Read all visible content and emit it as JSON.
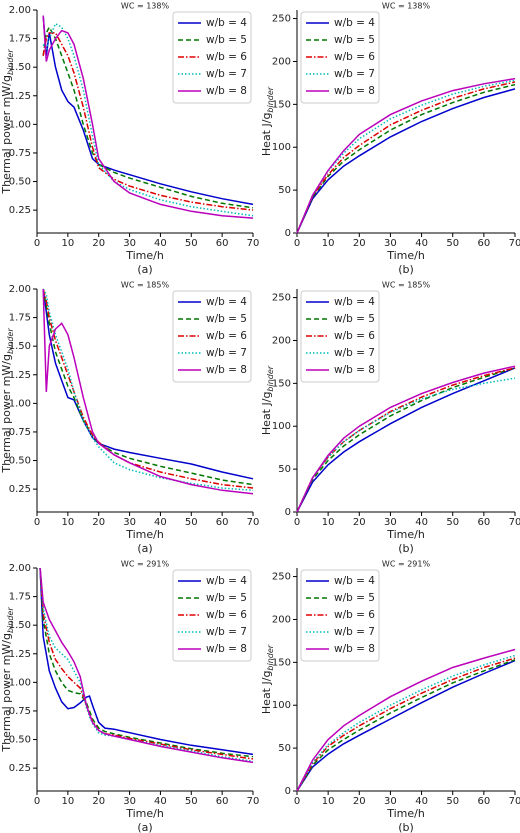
{
  "chart_data": [
    {
      "type": "line",
      "title": "WC = 138%",
      "caption": "(a)",
      "xlabel": "Time/h",
      "ylabel": "Thermal power mW/g",
      "ylabel_subscript": "binder",
      "legend_loc": "upper right",
      "xlim": [
        0,
        70
      ],
      "xticks": [
        0,
        10,
        20,
        30,
        40,
        50,
        60,
        70
      ],
      "ylim": [
        0.05,
        2.0
      ],
      "yticks": [
        0.25,
        {
          "value": 0.5,
          "label": "0.50"
        },
        0.75,
        {
          "value": 1.0,
          "label": "1.00"
        },
        1.25,
        {
          "value": 1.5,
          "label": "1.50"
        },
        1.75,
        {
          "value": 2.0,
          "label": "2.00"
        }
      ],
      "x": [
        2,
        3,
        4,
        6,
        8,
        10,
        12,
        15,
        18,
        20,
        25,
        30,
        40,
        50,
        60,
        70
      ],
      "series": [
        {
          "name": "w/b = 4",
          "color": "#0000cc",
          "linestyle": "solid",
          "values": [
            1.95,
            1.6,
            1.8,
            1.5,
            1.3,
            1.2,
            1.15,
            0.95,
            0.7,
            0.65,
            0.6,
            0.56,
            0.48,
            0.41,
            0.35,
            0.3
          ]
        },
        {
          "name": "w/b = 5",
          "color": "#007700",
          "linestyle": "dashed",
          "values": [
            1.6,
            1.8,
            1.85,
            1.75,
            1.6,
            1.45,
            1.3,
            1.0,
            0.75,
            0.65,
            0.58,
            0.53,
            0.45,
            0.37,
            0.31,
            0.27
          ]
        },
        {
          "name": "w/b = 6",
          "color": "#dd0000",
          "linestyle": "dashdot",
          "values": [
            1.6,
            1.75,
            1.8,
            1.8,
            1.7,
            1.6,
            1.45,
            1.15,
            0.8,
            0.62,
            0.52,
            0.46,
            0.38,
            0.32,
            0.28,
            0.25
          ]
        },
        {
          "name": "w/b = 7",
          "color": "#00bbbb",
          "linestyle": "dotted",
          "values": [
            1.7,
            1.65,
            1.75,
            1.88,
            1.85,
            1.75,
            1.6,
            1.3,
            0.9,
            0.65,
            0.5,
            0.43,
            0.34,
            0.28,
            0.24,
            0.2
          ]
        },
        {
          "name": "w/b = 8",
          "color": "#bb00bb",
          "linestyle": "solid",
          "values": [
            1.95,
            1.55,
            1.65,
            1.75,
            1.82,
            1.8,
            1.7,
            1.4,
            1.0,
            0.7,
            0.5,
            0.4,
            0.3,
            0.24,
            0.2,
            0.18
          ]
        }
      ]
    },
    {
      "type": "line",
      "title": "WC = 138%",
      "caption": "(b)",
      "xlabel": "Time/h",
      "ylabel": "Heat J/g",
      "ylabel_subscript": "binder",
      "legend_loc": "upper left",
      "xlim": [
        0,
        70
      ],
      "xticks": [
        0,
        10,
        20,
        30,
        40,
        50,
        60,
        70
      ],
      "ylim": [
        0,
        260
      ],
      "yticks": [
        0,
        50,
        100,
        150,
        200,
        250
      ],
      "x": [
        0,
        5,
        10,
        15,
        20,
        30,
        40,
        50,
        60,
        70
      ],
      "series": [
        {
          "name": "w/b = 4",
          "color": "#0000cc",
          "linestyle": "solid",
          "values": [
            0,
            40,
            62,
            78,
            90,
            112,
            130,
            145,
            158,
            168
          ]
        },
        {
          "name": "w/b = 5",
          "color": "#007700",
          "linestyle": "dashed",
          "values": [
            0,
            42,
            66,
            84,
            97,
            120,
            138,
            152,
            164,
            173
          ]
        },
        {
          "name": "w/b = 6",
          "color": "#dd0000",
          "linestyle": "dashdot",
          "values": [
            0,
            43,
            68,
            88,
            102,
            126,
            143,
            157,
            168,
            176
          ]
        },
        {
          "name": "w/b = 7",
          "color": "#00bbbb",
          "linestyle": "dotted",
          "values": [
            0,
            44,
            72,
            93,
            110,
            133,
            149,
            162,
            171,
            178
          ]
        },
        {
          "name": "w/b = 8",
          "color": "#bb00bb",
          "linestyle": "solid",
          "values": [
            0,
            44,
            73,
            96,
            115,
            138,
            154,
            166,
            174,
            180
          ]
        }
      ]
    },
    {
      "type": "line",
      "title": "WC = 185%",
      "caption": "(a)",
      "xlabel": "Time/h",
      "ylabel": "Thermal power mW/g",
      "ylabel_subscript": "binder",
      "legend_loc": "upper right",
      "xlim": [
        0,
        70
      ],
      "xticks": [
        0,
        10,
        20,
        30,
        40,
        50,
        60,
        70
      ],
      "ylim": [
        0.05,
        2.0
      ],
      "yticks": [
        0.25,
        {
          "value": 0.5,
          "label": "0.50"
        },
        0.75,
        {
          "value": 1.0,
          "label": "1.00"
        },
        1.25,
        {
          "value": 1.5,
          "label": "1.50"
        },
        1.75,
        {
          "value": 2.0,
          "label": "2.00"
        }
      ],
      "x": [
        2,
        3,
        4,
        6,
        8,
        10,
        12,
        15,
        18,
        20,
        25,
        30,
        40,
        50,
        60,
        70
      ],
      "series": [
        {
          "name": "w/b = 4",
          "color": "#0000cc",
          "linestyle": "solid",
          "values": [
            2.0,
            1.8,
            1.6,
            1.35,
            1.2,
            1.05,
            1.03,
            0.85,
            0.7,
            0.65,
            0.6,
            0.57,
            0.52,
            0.47,
            0.4,
            0.34
          ]
        },
        {
          "name": "w/b = 5",
          "color": "#007700",
          "linestyle": "dashed",
          "values": [
            2.0,
            1.85,
            1.7,
            1.45,
            1.3,
            1.15,
            1.05,
            0.85,
            0.72,
            0.65,
            0.57,
            0.52,
            0.45,
            0.39,
            0.33,
            0.29
          ]
        },
        {
          "name": "w/b = 6",
          "color": "#dd0000",
          "linestyle": "dashdot",
          "values": [
            2.0,
            1.9,
            1.75,
            1.55,
            1.4,
            1.25,
            1.1,
            0.88,
            0.72,
            0.66,
            0.55,
            0.48,
            0.4,
            0.34,
            0.29,
            0.26
          ]
        },
        {
          "name": "w/b = 7",
          "color": "#00bbbb",
          "linestyle": "dotted",
          "values": [
            2.0,
            1.95,
            1.8,
            1.6,
            1.45,
            1.3,
            1.1,
            0.85,
            0.7,
            0.62,
            0.48,
            0.42,
            0.35,
            0.3,
            0.26,
            0.24
          ]
        },
        {
          "name": "w/b = 8",
          "color": "#bb00bb",
          "linestyle": "solid",
          "values": [
            2.0,
            1.1,
            1.5,
            1.65,
            1.7,
            1.6,
            1.4,
            1.05,
            0.75,
            0.65,
            0.55,
            0.48,
            0.36,
            0.29,
            0.24,
            0.21
          ]
        }
      ]
    },
    {
      "type": "line",
      "title": "WC = 185%",
      "caption": "(b)",
      "xlabel": "Time/h",
      "ylabel": "Heat J/g",
      "ylabel_subscript": "binder",
      "legend_loc": "upper left",
      "xlim": [
        0,
        70
      ],
      "xticks": [
        0,
        10,
        20,
        30,
        40,
        50,
        60,
        70
      ],
      "ylim": [
        0,
        260
      ],
      "yticks": [
        0,
        50,
        100,
        150,
        200,
        250
      ],
      "x": [
        0,
        5,
        10,
        15,
        20,
        30,
        40,
        50,
        60,
        70
      ],
      "series": [
        {
          "name": "w/b = 4",
          "color": "#0000cc",
          "linestyle": "solid",
          "values": [
            0,
            35,
            55,
            70,
            82,
            103,
            122,
            138,
            153,
            168
          ]
        },
        {
          "name": "w/b = 5",
          "color": "#007700",
          "linestyle": "dashed",
          "values": [
            0,
            38,
            60,
            77,
            90,
            112,
            130,
            145,
            157,
            168
          ]
        },
        {
          "name": "w/b = 6",
          "color": "#dd0000",
          "linestyle": "dashdot",
          "values": [
            0,
            40,
            64,
            82,
            95,
            117,
            134,
            148,
            159,
            168
          ]
        },
        {
          "name": "w/b = 7",
          "color": "#00bbbb",
          "linestyle": "dotted",
          "values": [
            0,
            40,
            64,
            82,
            95,
            116,
            132,
            143,
            150,
            156
          ]
        },
        {
          "name": "w/b = 8",
          "color": "#bb00bb",
          "linestyle": "solid",
          "values": [
            0,
            40,
            66,
            86,
            100,
            122,
            138,
            151,
            162,
            170
          ]
        }
      ]
    },
    {
      "type": "line",
      "title": "WC = 291%",
      "caption": "(a)",
      "xlabel": "Time/h",
      "ylabel": "Thermal power mW/g",
      "ylabel_subscript": "binder",
      "legend_loc": "upper right",
      "xlim": [
        0,
        70
      ],
      "xticks": [
        0,
        10,
        20,
        30,
        40,
        50,
        60,
        70
      ],
      "ylim": [
        0.05,
        2.0
      ],
      "yticks": [
        0.25,
        {
          "value": 0.5,
          "label": "0.50"
        },
        0.75,
        {
          "value": 1.0,
          "label": "1.00"
        },
        1.25,
        {
          "value": 1.5,
          "label": "1.50"
        },
        1.75,
        {
          "value": 2.0,
          "label": "2.00"
        }
      ],
      "x": [
        1,
        2,
        4,
        6,
        8,
        10,
        12,
        14,
        16,
        17,
        18,
        20,
        22,
        25,
        30,
        40,
        50,
        60,
        70
      ],
      "series": [
        {
          "name": "w/b = 4",
          "color": "#0000cc",
          "linestyle": "solid",
          "values": [
            2.0,
            1.4,
            1.1,
            0.95,
            0.83,
            0.77,
            0.78,
            0.82,
            0.87,
            0.88,
            0.8,
            0.65,
            0.6,
            0.59,
            0.56,
            0.5,
            0.45,
            0.41,
            0.37
          ]
        },
        {
          "name": "w/b = 5",
          "color": "#007700",
          "linestyle": "dashed",
          "values": [
            2.0,
            1.55,
            1.25,
            1.1,
            1.0,
            0.93,
            0.91,
            0.9,
            0.82,
            0.75,
            0.68,
            0.6,
            0.57,
            0.55,
            0.52,
            0.47,
            0.42,
            0.38,
            0.35
          ]
        },
        {
          "name": "w/b = 6",
          "color": "#dd0000",
          "linestyle": "dashdot",
          "values": [
            2.0,
            1.6,
            1.35,
            1.2,
            1.12,
            1.05,
            1.0,
            0.95,
            0.8,
            0.72,
            0.66,
            0.58,
            0.55,
            0.54,
            0.51,
            0.46,
            0.41,
            0.37,
            0.33
          ]
        },
        {
          "name": "w/b = 7",
          "color": "#00bbbb",
          "linestyle": "dotted",
          "values": [
            2.0,
            1.65,
            1.4,
            1.3,
            1.25,
            1.2,
            1.1,
            1.0,
            0.78,
            0.7,
            0.64,
            0.56,
            0.54,
            0.53,
            0.5,
            0.45,
            0.4,
            0.35,
            0.31
          ]
        },
        {
          "name": "w/b = 8",
          "color": "#bb00bb",
          "linestyle": "solid",
          "values": [
            2.0,
            1.7,
            1.55,
            1.45,
            1.35,
            1.27,
            1.18,
            1.05,
            0.8,
            0.72,
            0.65,
            0.58,
            0.55,
            0.53,
            0.5,
            0.44,
            0.39,
            0.34,
            0.3
          ]
        }
      ]
    },
    {
      "type": "line",
      "title": "WC = 291%",
      "caption": "(b)",
      "xlabel": "Time/h",
      "ylabel": "Heat J/g",
      "ylabel_subscript": "binder",
      "legend_loc": "upper left",
      "xlim": [
        0,
        70
      ],
      "xticks": [
        0,
        10,
        20,
        30,
        40,
        50,
        60,
        70
      ],
      "ylim": [
        0,
        260
      ],
      "yticks": [
        0,
        50,
        100,
        150,
        200,
        250
      ],
      "x": [
        0,
        5,
        10,
        15,
        20,
        30,
        40,
        50,
        60,
        70
      ],
      "series": [
        {
          "name": "w/b = 4",
          "color": "#0000cc",
          "linestyle": "solid",
          "values": [
            0,
            28,
            43,
            55,
            65,
            84,
            103,
            121,
            137,
            152
          ]
        },
        {
          "name": "w/b = 5",
          "color": "#007700",
          "linestyle": "dashed",
          "values": [
            0,
            30,
            48,
            60,
            71,
            91,
            109,
            126,
            140,
            153
          ]
        },
        {
          "name": "w/b = 6",
          "color": "#dd0000",
          "linestyle": "dashdot",
          "values": [
            0,
            32,
            52,
            65,
            76,
            96,
            114,
            130,
            144,
            155
          ]
        },
        {
          "name": "w/b = 7",
          "color": "#00bbbb",
          "linestyle": "dotted",
          "values": [
            0,
            33,
            54,
            68,
            80,
            100,
            118,
            134,
            147,
            158
          ]
        },
        {
          "name": "w/b = 8",
          "color": "#bb00bb",
          "linestyle": "solid",
          "values": [
            0,
            36,
            60,
            76,
            88,
            110,
            128,
            144,
            155,
            165
          ]
        }
      ]
    }
  ]
}
